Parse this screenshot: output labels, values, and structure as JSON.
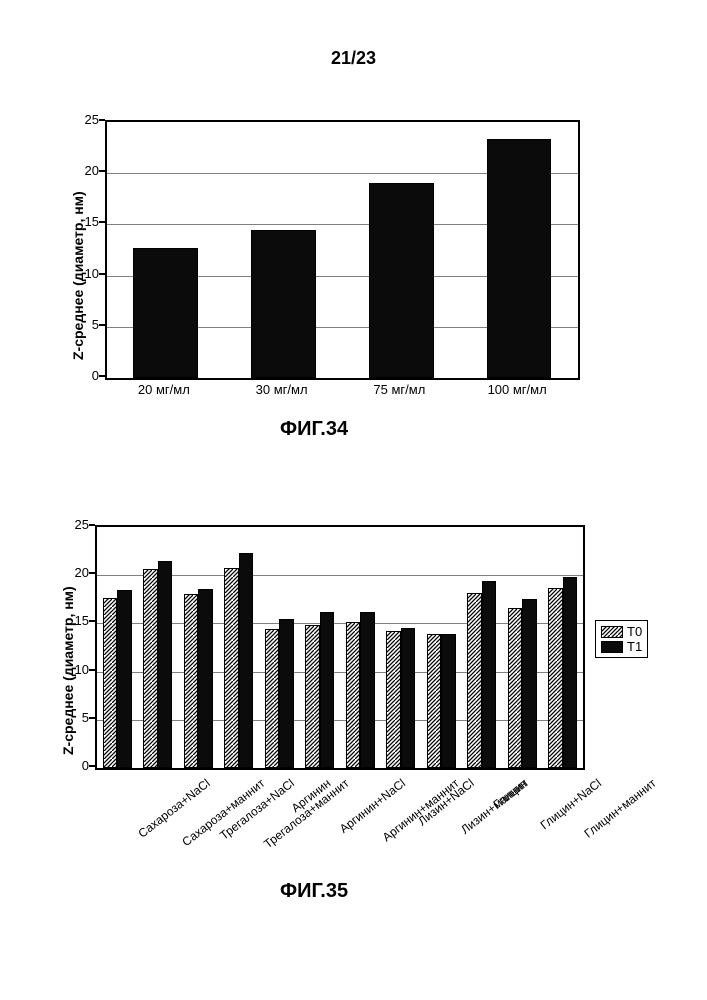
{
  "page_header": "21/23",
  "chart1": {
    "type": "bar",
    "caption": "ФИГ.34",
    "ylabel": "Z-среднее (диаметр, нм)",
    "ylim": [
      0,
      25
    ],
    "ytick_step": 5,
    "yticks": [
      0,
      5,
      10,
      15,
      20,
      25
    ],
    "grid_color": "#808080",
    "bar_color": "#0b0b0b",
    "bar_border": "#000000",
    "categories": [
      "20 мг/мл",
      "30 мг/мл",
      "75 мг/мл",
      "100 мг/мл"
    ],
    "values": [
      12.7,
      14.5,
      19.0,
      23.3
    ],
    "tick_fontsize": 13,
    "label_fontsize": 14
  },
  "chart2": {
    "type": "grouped-bar",
    "caption": "ФИГ.35",
    "ylabel": "Z-среднее (диаметр, нм)",
    "ylim": [
      0,
      25
    ],
    "ytick_step": 5,
    "yticks": [
      0,
      5,
      10,
      15,
      20,
      25
    ],
    "grid_color": "#808080",
    "categories": [
      "Сахароза+NaCl",
      "Сахароза+маннит",
      "Трегалоза+NaCl",
      "Трегалоза+маннит",
      "Аргинин",
      "Аргинин+NaCl",
      "Аргинин+маннит",
      "Лизин+NaCl",
      "Лизин+маннит",
      "Глицин",
      "Глицин+NaCl",
      "Глицин+маннит"
    ],
    "series": [
      {
        "name": "T0",
        "pattern": "hatch",
        "color": "#ffffff",
        "stroke": "#000000",
        "values": [
          17.6,
          20.6,
          18.1,
          20.7,
          14.4,
          14.8,
          15.1,
          14.2,
          13.9,
          18.2,
          16.6,
          18.7
        ]
      },
      {
        "name": "T1",
        "pattern": "solid",
        "color": "#0b0b0b",
        "stroke": "#000000",
        "values": [
          18.5,
          21.5,
          18.6,
          22.3,
          15.5,
          16.2,
          16.2,
          14.5,
          13.9,
          19.4,
          17.5,
          19.8
        ]
      }
    ],
    "legend": {
      "labels": [
        "T0",
        "T1"
      ]
    },
    "tick_fontsize": 13,
    "label_fontsize": 14
  }
}
